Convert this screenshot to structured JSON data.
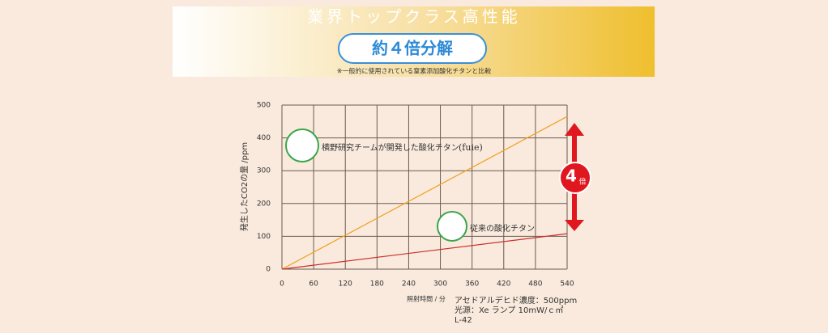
{
  "header": {
    "title": "業界トップクラス高性能",
    "badge": "約４倍分解",
    "note": "※一般的に使用されている窒素添加酸化チタンと比較"
  },
  "chart_data": {
    "type": "line",
    "x_label": "照射時間 / 分",
    "y_label": "発生したCO2の量 /ppm",
    "xlim": [
      0,
      540
    ],
    "xticks": [
      0,
      60,
      120,
      180,
      240,
      300,
      360,
      420,
      480,
      540
    ],
    "ylim": [
      0,
      500
    ],
    "yticks": [
      0,
      100,
      200,
      300,
      400,
      500
    ],
    "grid": true,
    "series": [
      {
        "name": "横野研究チームが開発した酸化チタン",
        "brand": "(fuie)",
        "color": "#f0a020",
        "x": [
          0,
          540
        ],
        "values": [
          0,
          465
        ]
      },
      {
        "name": "従来の酸化チタン",
        "color": "#c8302a",
        "x": [
          0,
          540
        ],
        "values": [
          0,
          108
        ]
      }
    ],
    "ratio_badge": {
      "number": "4",
      "unit": "倍"
    },
    "conditions": [
      "アセドアルデヒド濃度：500ppm",
      "光源：Xe ランプ 10mW/ｃ㎡",
      "L-42"
    ]
  }
}
